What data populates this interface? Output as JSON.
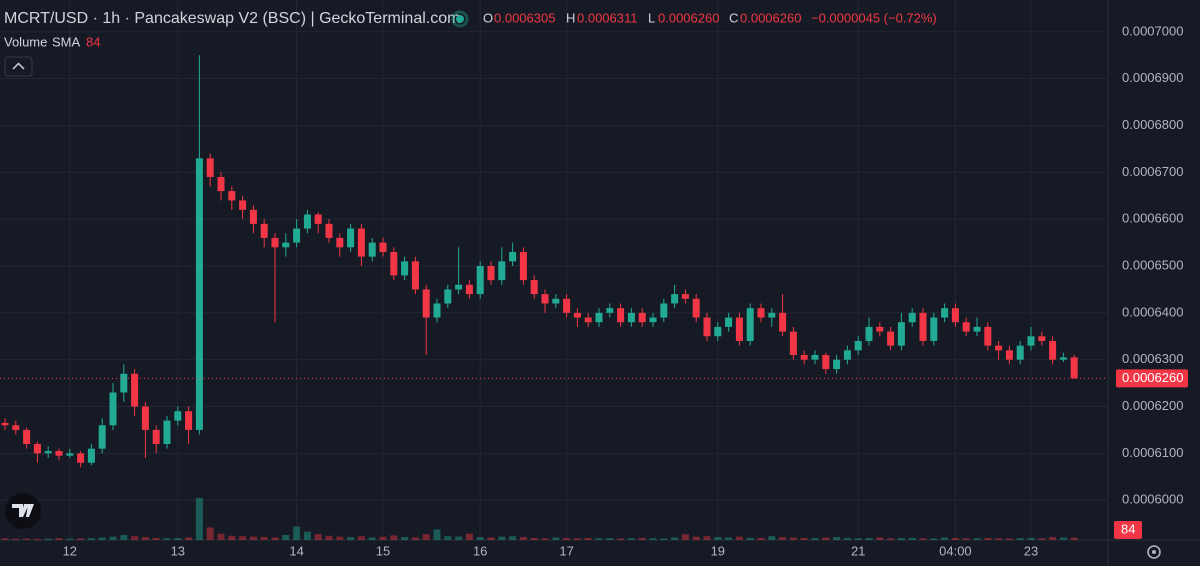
{
  "chart_data": {
    "type": "candlestick",
    "header": {
      "symbol": "MCRT/USD · 1h · Pancakeswap V2 (BSC) | GeckoTerminal.com",
      "o_label": "O",
      "o": "0.0006305",
      "h_label": "H",
      "h": "0.0006311",
      "l_label": "L",
      "l": "0.0006260",
      "c_label": "C",
      "c": "0.0006260",
      "change": "−0.0000045 (−0.72%)",
      "volume_label": "Volume",
      "sma_label": "SMA",
      "sma_value": "84"
    },
    "categories": [
      null,
      null,
      null,
      null,
      null,
      null,
      "12",
      null,
      null,
      null,
      null,
      null,
      null,
      null,
      null,
      null,
      "13",
      null,
      null,
      null,
      null,
      null,
      null,
      null,
      null,
      null,
      null,
      "14",
      null,
      null,
      null,
      null,
      null,
      null,
      null,
      "15",
      null,
      null,
      null,
      null,
      null,
      null,
      null,
      null,
      "16",
      null,
      null,
      null,
      null,
      null,
      null,
      null,
      "17",
      null,
      null,
      null,
      null,
      null,
      null,
      null,
      null,
      null,
      null,
      null,
      null,
      null,
      "19",
      null,
      null,
      null,
      null,
      null,
      null,
      null,
      null,
      null,
      null,
      null,
      null,
      "21",
      null,
      null,
      null,
      null,
      null,
      null,
      null,
      null,
      "04:00",
      null,
      null,
      null,
      null,
      null,
      null,
      "23",
      null,
      null,
      null,
      null
    ],
    "open": [
      0.0006165,
      0.000616,
      0.000615,
      0.000612,
      0.00061,
      0.0006105,
      0.0006095,
      0.00061,
      0.000608,
      0.000611,
      0.000616,
      0.000623,
      0.000627,
      0.00062,
      0.000615,
      0.000612,
      0.000617,
      0.000619,
      0.000615,
      0.000673,
      0.000669,
      0.000666,
      0.000664,
      0.000662,
      0.000659,
      0.000656,
      0.000654,
      0.000655,
      0.000658,
      0.000661,
      0.000659,
      0.000656,
      0.000654,
      0.000658,
      0.000652,
      0.000655,
      0.000653,
      0.000648,
      0.000651,
      0.000645,
      0.000639,
      0.000642,
      0.000645,
      0.000646,
      0.000644,
      0.00065,
      0.000647,
      0.000651,
      0.000653,
      0.000647,
      0.000644,
      0.000642,
      0.000643,
      0.00064,
      0.000639,
      0.000638,
      0.00064,
      0.000641,
      0.000638,
      0.00064,
      0.000638,
      0.000639,
      0.000642,
      0.000644,
      0.000643,
      0.000639,
      0.000635,
      0.000637,
      0.000639,
      0.000634,
      0.000641,
      0.000639,
      0.00064,
      0.000636,
      0.000631,
      0.00063,
      0.000631,
      0.000628,
      0.00063,
      0.000632,
      0.000634,
      0.000637,
      0.000636,
      0.000633,
      0.000638,
      0.00064,
      0.000634,
      0.000639,
      0.000641,
      0.000638,
      0.000636,
      0.000637,
      0.000633,
      0.000632,
      0.00063,
      0.000633,
      0.000635,
      0.000634,
      0.00063,
      0.0006305
    ],
    "high": [
      0.0006175,
      0.000617,
      0.0006155,
      0.0006125,
      0.0006115,
      0.000611,
      0.000611,
      0.0006105,
      0.000612,
      0.0006175,
      0.000625,
      0.000629,
      0.000628,
      0.000621,
      0.000616,
      0.000618,
      0.00062,
      0.00062,
      0.000695,
      0.000674,
      0.00067,
      0.000667,
      0.000665,
      0.000663,
      0.00066,
      0.000657,
      0.000657,
      0.00066,
      0.000662,
      0.0006615,
      0.00066,
      0.000657,
      0.000659,
      0.000659,
      0.000656,
      0.000656,
      0.000654,
      0.000652,
      0.000652,
      0.000646,
      0.000643,
      0.000646,
      0.000654,
      0.000647,
      0.000651,
      0.000651,
      0.000654,
      0.000655,
      0.000654,
      0.000648,
      0.000645,
      0.000644,
      0.000644,
      0.000641,
      0.00064,
      0.000641,
      0.000642,
      0.000642,
      0.000641,
      0.000641,
      0.00064,
      0.000643,
      0.000646,
      0.000645,
      0.000644,
      0.00064,
      0.000638,
      0.00064,
      0.00064,
      0.000642,
      0.000642,
      0.000641,
      0.000644,
      0.000637,
      0.000632,
      0.000632,
      0.0006315,
      0.000631,
      0.000633,
      0.000635,
      0.000639,
      0.000638,
      0.000637,
      0.00064,
      0.000641,
      0.000641,
      0.00064,
      0.000642,
      0.000642,
      0.000639,
      0.000639,
      0.000638,
      0.000634,
      0.000633,
      0.000634,
      0.000637,
      0.000636,
      0.000635,
      0.0006315,
      0.0006311
    ],
    "low": [
      0.000615,
      0.000614,
      0.000611,
      0.000608,
      0.000609,
      0.0006085,
      0.000609,
      0.000607,
      0.0006075,
      0.00061,
      0.000615,
      0.000621,
      0.000618,
      0.000609,
      0.00061,
      0.000611,
      0.000616,
      0.000612,
      0.000614,
      0.000667,
      0.000664,
      0.000662,
      0.00066,
      0.000657,
      0.000654,
      0.000638,
      0.000652,
      0.000654,
      0.000657,
      0.000657,
      0.000655,
      0.000652,
      0.000653,
      0.00065,
      0.000651,
      0.000652,
      0.000647,
      0.000647,
      0.000644,
      0.000631,
      0.000638,
      0.000641,
      0.000644,
      0.000643,
      0.000643,
      0.000646,
      0.000646,
      0.00065,
      0.000646,
      0.000643,
      0.00064,
      0.000641,
      0.000639,
      0.000637,
      0.000637,
      0.000637,
      0.000639,
      0.000637,
      0.000637,
      0.000637,
      0.000637,
      0.000638,
      0.000641,
      0.000642,
      0.000638,
      0.000634,
      0.000634,
      0.000636,
      0.000633,
      0.000633,
      0.000638,
      0.000637,
      0.000635,
      0.00063,
      0.000629,
      0.000629,
      0.000627,
      0.000627,
      0.000629,
      0.000631,
      0.000633,
      0.000635,
      0.000632,
      0.000632,
      0.000637,
      0.000633,
      0.000633,
      0.000638,
      0.000637,
      0.000635,
      0.000635,
      0.000632,
      0.00063,
      0.000629,
      0.000629,
      0.000632,
      0.000633,
      0.000629,
      0.0006295,
      0.000626
    ],
    "close": [
      0.000616,
      0.000615,
      0.000612,
      0.00061,
      0.0006105,
      0.0006095,
      0.00061,
      0.000608,
      0.000611,
      0.000616,
      0.000623,
      0.000627,
      0.00062,
      0.000615,
      0.000612,
      0.000617,
      0.000619,
      0.000615,
      0.000673,
      0.000669,
      0.000666,
      0.000664,
      0.000662,
      0.000659,
      0.000656,
      0.000654,
      0.000655,
      0.000658,
      0.000661,
      0.000659,
      0.000656,
      0.000654,
      0.000658,
      0.000652,
      0.000655,
      0.000653,
      0.000648,
      0.000651,
      0.000645,
      0.000639,
      0.000642,
      0.000645,
      0.000646,
      0.000644,
      0.00065,
      0.000647,
      0.000651,
      0.000653,
      0.000647,
      0.000644,
      0.000642,
      0.000643,
      0.00064,
      0.000639,
      0.000638,
      0.00064,
      0.000641,
      0.000638,
      0.00064,
      0.000638,
      0.000639,
      0.000642,
      0.000644,
      0.000643,
      0.000639,
      0.000635,
      0.000637,
      0.000639,
      0.000634,
      0.000641,
      0.000639,
      0.00064,
      0.000636,
      0.000631,
      0.00063,
      0.000631,
      0.000628,
      0.00063,
      0.000632,
      0.000634,
      0.000637,
      0.000636,
      0.000633,
      0.000638,
      0.00064,
      0.000634,
      0.000639,
      0.000641,
      0.000638,
      0.000636,
      0.000637,
      0.000633,
      0.000632,
      0.00063,
      0.000633,
      0.000635,
      0.000634,
      0.00063,
      0.0006305,
      0.000626
    ],
    "volume": [
      40,
      30,
      35,
      25,
      30,
      45,
      30,
      35,
      40,
      60,
      80,
      120,
      90,
      70,
      50,
      40,
      45,
      60,
      1000,
      300,
      150,
      100,
      90,
      80,
      70,
      60,
      120,
      320,
      200,
      140,
      100,
      80,
      70,
      90,
      60,
      80,
      110,
      70,
      60,
      140,
      250,
      90,
      80,
      150,
      70,
      60,
      80,
      90,
      70,
      50,
      40,
      60,
      50,
      40,
      50,
      40,
      45,
      35,
      40,
      50,
      40,
      35,
      60,
      140,
      80,
      90,
      70,
      60,
      80,
      50,
      50,
      90,
      70,
      60,
      50,
      45,
      60,
      70,
      50,
      40,
      50,
      60,
      40,
      45,
      50,
      40,
      35,
      60,
      50,
      40,
      40,
      50,
      40,
      35,
      45,
      50,
      40,
      70,
      60,
      55
    ],
    "volume_sma": 84,
    "last_price": {
      "value": 0.000626,
      "label": "0.0006260"
    },
    "up_color": "#22ab94",
    "down_color": "#f23645",
    "ylim": [
      0.0005915,
      0.0007068
    ],
    "yticks": [
      {
        "value": 0.0006,
        "label": "0.0006000"
      },
      {
        "value": 0.00061,
        "label": "0.0006100"
      },
      {
        "value": 0.00062,
        "label": "0.0006200"
      },
      {
        "value": 0.00063,
        "label": "0.0006300"
      },
      {
        "value": 0.00064,
        "label": "0.0006400"
      },
      {
        "value": 0.00065,
        "label": "0.0006500"
      },
      {
        "value": 0.00066,
        "label": "0.0006600"
      },
      {
        "value": 0.00067,
        "label": "0.0006700"
      },
      {
        "value": 0.00068,
        "label": "0.0006800"
      },
      {
        "value": 0.00069,
        "label": "0.0006900"
      },
      {
        "value": 0.0007,
        "label": "0.0007000"
      }
    ],
    "grid": true
  }
}
